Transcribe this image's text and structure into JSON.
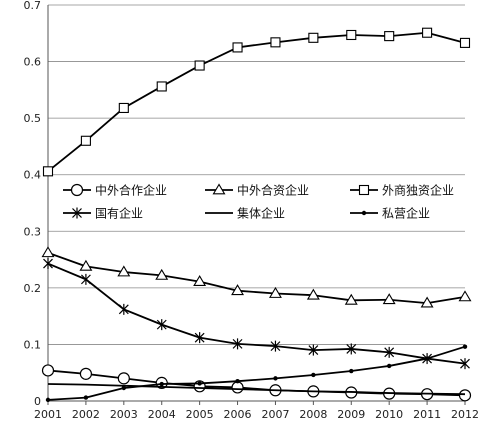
{
  "chart_data": {
    "type": "line",
    "title": "",
    "xlabel": "",
    "ylabel": "",
    "x": [
      2001,
      2002,
      2003,
      2004,
      2005,
      2006,
      2007,
      2008,
      2009,
      2010,
      2011,
      2012
    ],
    "ylim": [
      0,
      0.7
    ],
    "yticks": [
      "0",
      "0.1",
      "0.2",
      "0.3",
      "0.4",
      "0.5",
      "0.6",
      "0.7"
    ],
    "xticks": [
      "2001",
      "2002",
      "2003",
      "2004",
      "2005",
      "2006",
      "2007",
      "2008",
      "2009",
      "2010",
      "2011",
      "2012"
    ],
    "grid": "horizontal",
    "legend_position": "center, inside plot",
    "line_color": "#000000",
    "series": [
      {
        "name": "中外合作企业",
        "marker": "circle",
        "values": [
          0.054,
          0.048,
          0.04,
          0.032,
          0.026,
          0.024,
          0.019,
          0.017,
          0.015,
          0.013,
          0.012,
          0.01
        ]
      },
      {
        "name": "中外合资企业",
        "marker": "triangle",
        "values": [
          0.262,
          0.238,
          0.228,
          0.222,
          0.211,
          0.195,
          0.19,
          0.187,
          0.178,
          0.179,
          0.173,
          0.184
        ]
      },
      {
        "name": "外商独资企业",
        "marker": "square",
        "values": [
          0.406,
          0.46,
          0.518,
          0.556,
          0.593,
          0.625,
          0.634,
          0.642,
          0.647,
          0.645,
          0.651,
          0.633
        ]
      },
      {
        "name": "国有企业",
        "marker": "asterisk",
        "values": [
          0.243,
          0.215,
          0.162,
          0.135,
          0.112,
          0.101,
          0.097,
          0.09,
          0.092,
          0.086,
          0.075,
          0.066
        ]
      },
      {
        "name": "集体企业",
        "marker": "none",
        "values": [
          0.03,
          0.029,
          0.027,
          0.025,
          0.023,
          0.021,
          0.019,
          0.017,
          0.016,
          0.014,
          0.013,
          0.012
        ]
      },
      {
        "name": "私营企业",
        "marker": "dot",
        "values": [
          0.002,
          0.006,
          0.023,
          0.03,
          0.031,
          0.035,
          0.04,
          0.046,
          0.053,
          0.062,
          0.075,
          0.096
        ]
      }
    ]
  }
}
